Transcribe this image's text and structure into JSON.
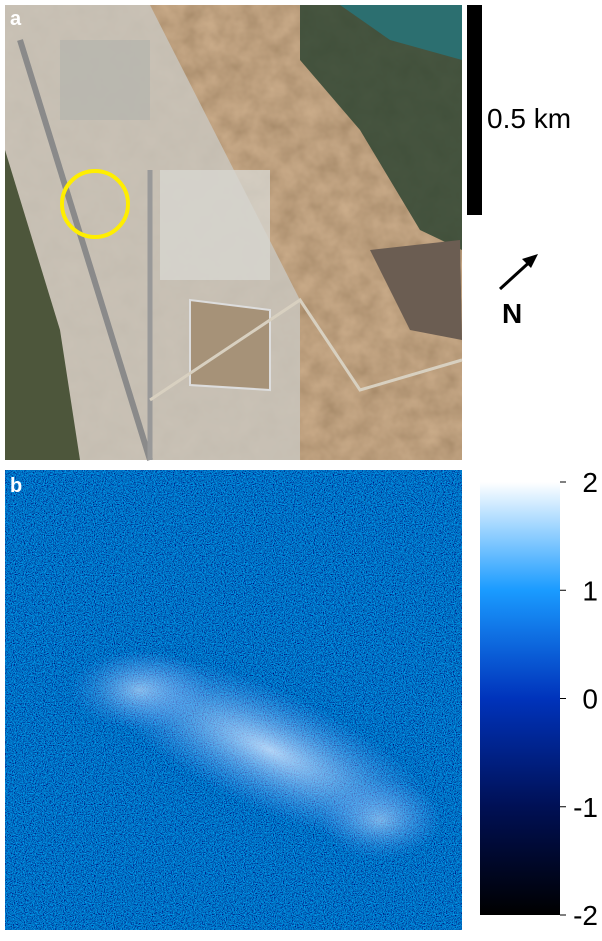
{
  "panel_a": {
    "label": "a",
    "scale_bar": "0.5 km",
    "north": "N"
  },
  "panel_b": {
    "label": "b",
    "colorbar": {
      "lim": [
        -2,
        2
      ],
      "ticks": [
        2,
        1,
        0,
        -1,
        -2
      ]
    }
  }
}
